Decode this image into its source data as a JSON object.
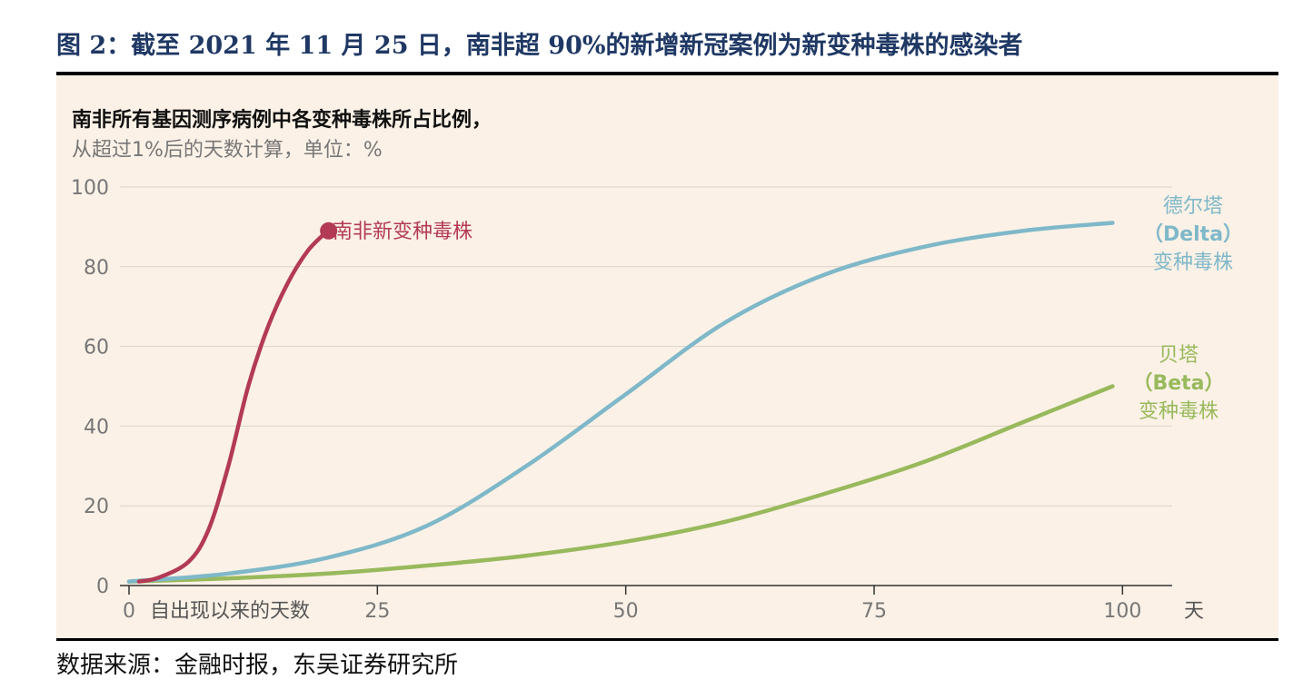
{
  "figure": {
    "title": "图 2：截至 2021 年 11 月 25 日，南非超 90%的新增新冠案例为新变种毒株的感染者",
    "source": "数据来源：金融时报，东吴证券研究所"
  },
  "chart_data": {
    "type": "line",
    "title": "南非所有基因测序病例中各变种毒株所占比例，",
    "subtitle": "从超过1%后的天数计算，单位：%",
    "xlabel": "自出现以来的天数",
    "x_unit": "天",
    "xlim": [
      0,
      105
    ],
    "ylim": [
      0,
      100
    ],
    "x_ticks": [
      "0",
      "25",
      "50",
      "75",
      "100"
    ],
    "y_ticks": [
      "0",
      "20",
      "40",
      "60",
      "80",
      "100"
    ],
    "grid": true,
    "series": [
      {
        "name": "南非新变种毒株",
        "color": "#b33a55",
        "x": [
          1,
          3,
          6,
          8,
          10,
          12,
          14,
          16,
          18,
          20
        ],
        "y": [
          1,
          2,
          6,
          14,
          30,
          50,
          65,
          76,
          84,
          89
        ],
        "end_marker": true
      },
      {
        "name": "德尔塔（Delta）变种毒株",
        "label_lines": [
          "德尔塔",
          "（Delta）",
          "变种毒株"
        ],
        "color": "#7eb8c9",
        "x": [
          0,
          10,
          20,
          30,
          40,
          50,
          60,
          70,
          80,
          90,
          99
        ],
        "y": [
          1,
          3,
          7,
          15,
          30,
          48,
          66,
          78,
          85,
          89,
          91
        ]
      },
      {
        "name": "贝塔（Beta）变种毒株",
        "label_lines": [
          "贝塔",
          "（Beta）",
          "变种毒株"
        ],
        "color": "#98b95c",
        "x": [
          0,
          10,
          20,
          30,
          40,
          50,
          60,
          70,
          80,
          90,
          99
        ],
        "y": [
          1,
          1.8,
          3,
          5,
          7.5,
          11,
          16,
          23,
          31,
          41,
          50
        ]
      }
    ]
  }
}
